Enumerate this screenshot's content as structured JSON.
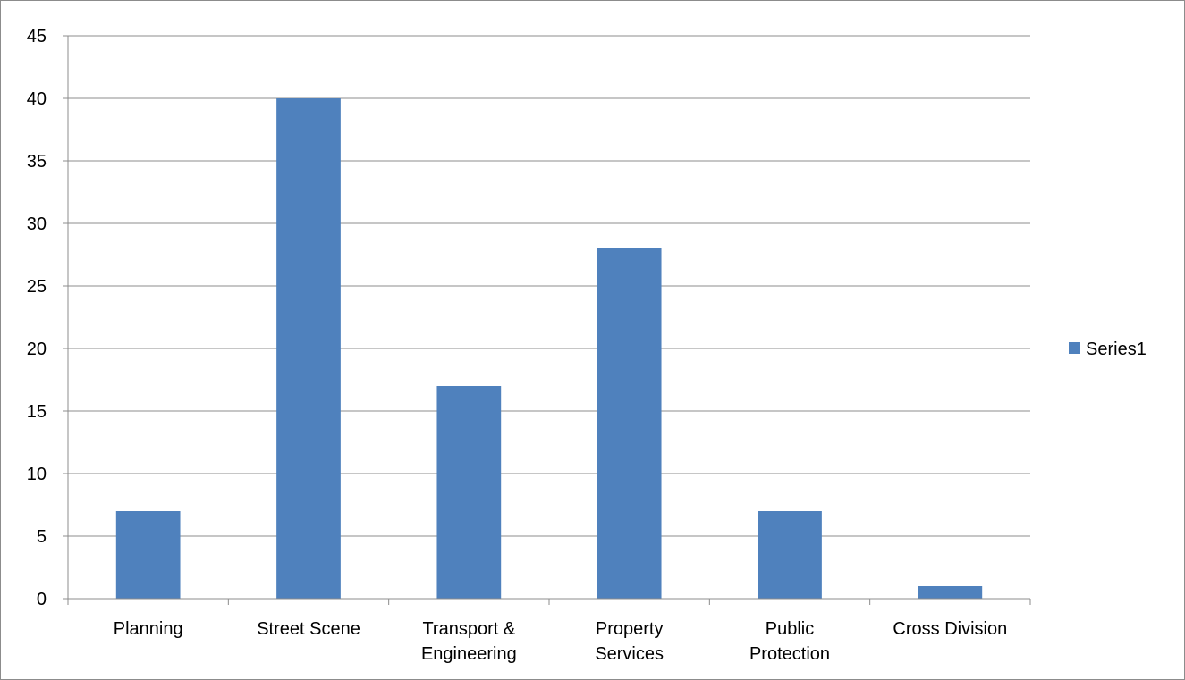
{
  "chart_data": {
    "type": "bar",
    "categories": [
      [
        "Planning"
      ],
      [
        "Street Scene"
      ],
      [
        "Transport &",
        "Engineering"
      ],
      [
        "Property",
        "Services"
      ],
      [
        "Public",
        "Protection"
      ],
      [
        "Cross Division"
      ]
    ],
    "series": [
      {
        "name": "Series1",
        "values": [
          7,
          40,
          17,
          28,
          7,
          1
        ]
      }
    ],
    "title": "",
    "xlabel": "",
    "ylabel": "",
    "ylim": [
      0,
      45
    ],
    "ytick_step": 5,
    "grid": true,
    "legend_position": "right",
    "colors": {
      "bar": "#4f81bd",
      "grid": "#8c8c8c",
      "axis": "#8c8c8c"
    }
  }
}
